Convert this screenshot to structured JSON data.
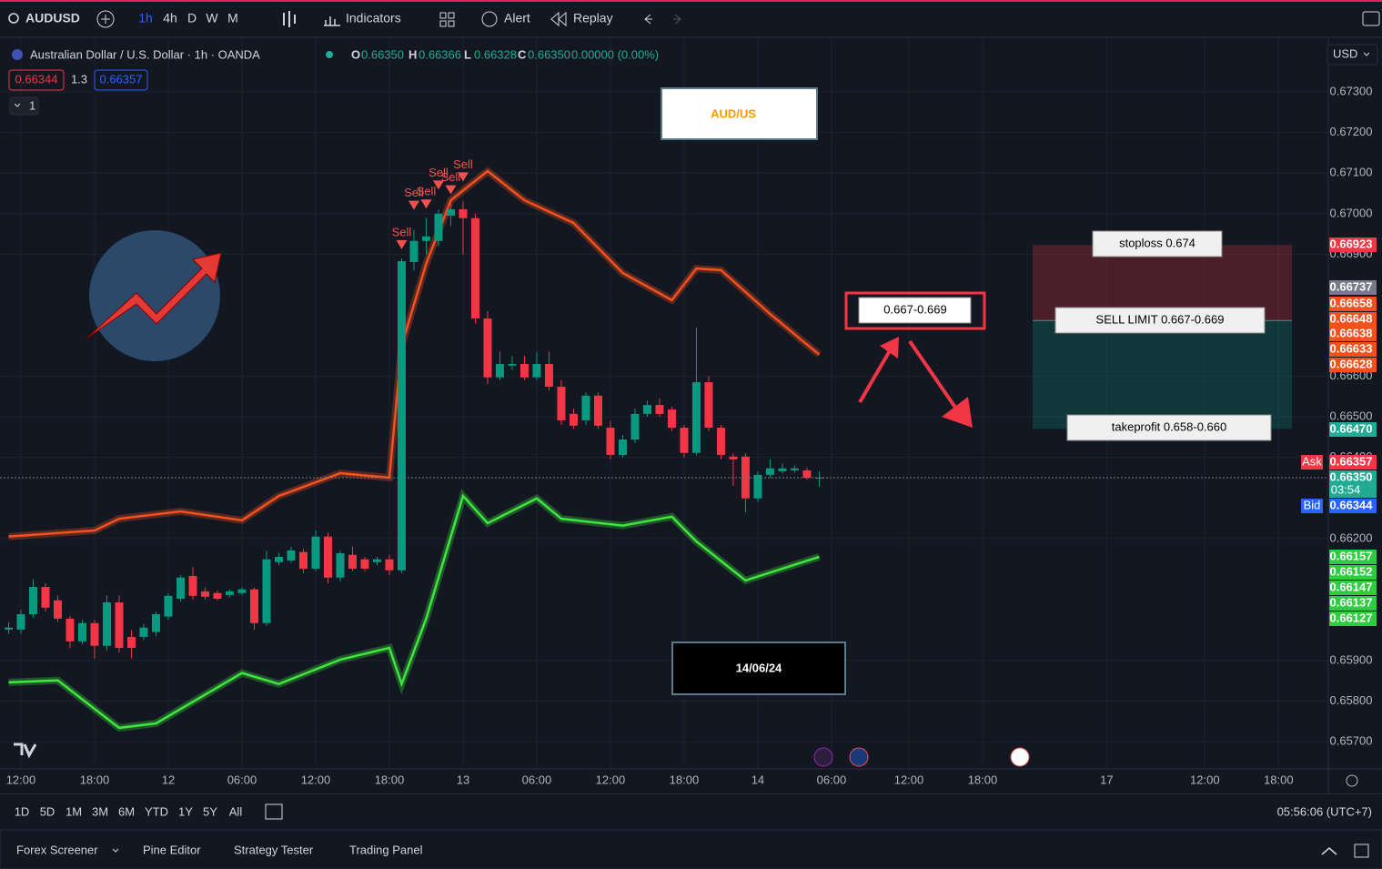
{
  "toolbar": {
    "symbol": "AUDUSD",
    "intervals": [
      "1h",
      "4h",
      "D",
      "W",
      "M"
    ],
    "indicators": "Indicators",
    "alert": "Alert",
    "replay": "Replay"
  },
  "legend": {
    "title": "Australian Dollar / U.S. Dollar · 1h · OANDA",
    "ohlc": [
      {
        "key": "O",
        "value": "0.66350"
      },
      {
        "key": "H",
        "value": "0.66366"
      },
      {
        "key": "L",
        "value": "0.66328"
      },
      {
        "key": "C",
        "value": "0.66350"
      }
    ],
    "change": "0.00000 (0.00%)",
    "sell_price": "0.66344",
    "spread": "1.3",
    "buy_price": "0.66357",
    "indicator_count": "1"
  },
  "currency": "USD",
  "chart_data": {
    "type": "candlestick",
    "up_color": "#089981",
    "down_color": "#f23645",
    "open": [
      0.65976,
      0.65976,
      0.66014,
      0.66081,
      0.66048,
      0.66003,
      0.65947,
      0.65992,
      0.65936,
      0.66043,
      0.65958,
      0.65958,
      0.6597,
      0.66008,
      0.66052,
      0.66108,
      0.6607,
      0.66066,
      0.66061,
      0.66066,
      0.66075,
      0.65992,
      0.66142,
      0.66146,
      0.66167,
      0.66126,
      0.66205,
      0.66104,
      0.6616,
      0.66149,
      0.66142,
      0.66149,
      0.66122,
      0.66881,
      0.66933,
      0.66933,
      0.66995,
      0.67011,
      0.66989,
      0.66742,
      0.66597,
      0.66626,
      0.6663,
      0.66597,
      0.6663,
      0.66574,
      0.66507,
      0.66491,
      0.66552,
      0.66473,
      0.66406,
      0.66444,
      0.66507,
      0.66529,
      0.66518,
      0.66473,
      0.66411,
      0.66585,
      0.66473,
      0.66402,
      0.66402,
      0.66299,
      0.66357,
      0.66366,
      0.66368,
      0.66368,
      0.6635
    ],
    "high": [
      0.65995,
      0.66025,
      0.661,
      0.6609,
      0.6606,
      0.6601,
      0.66,
      0.66,
      0.6606,
      0.6606,
      0.65975,
      0.6599,
      0.6602,
      0.66065,
      0.6611,
      0.6613,
      0.6608,
      0.66072,
      0.66075,
      0.6608,
      0.6608,
      0.6617,
      0.66165,
      0.6618,
      0.66175,
      0.6622,
      0.66215,
      0.6617,
      0.6618,
      0.66155,
      0.66155,
      0.6616,
      0.6689,
      0.6696,
      0.6699,
      0.6701,
      0.67025,
      0.6703,
      0.67,
      0.6676,
      0.6666,
      0.6665,
      0.6665,
      0.6666,
      0.6666,
      0.6659,
      0.6652,
      0.6656,
      0.6656,
      0.6649,
      0.66455,
      0.6652,
      0.6654,
      0.66545,
      0.66525,
      0.6648,
      0.6672,
      0.666,
      0.6648,
      0.6641,
      0.6641,
      0.66365,
      0.66395,
      0.66385,
      0.6638,
      0.66375,
      0.66366
    ],
    "low": [
      0.65965,
      0.65965,
      0.66005,
      0.6602,
      0.65995,
      0.6593,
      0.6594,
      0.65905,
      0.65925,
      0.6592,
      0.65905,
      0.6595,
      0.6596,
      0.66,
      0.66045,
      0.6605,
      0.6605,
      0.66048,
      0.66055,
      0.6606,
      0.65975,
      0.65985,
      0.66135,
      0.6614,
      0.66115,
      0.6612,
      0.6609,
      0.66095,
      0.6612,
      0.6612,
      0.66135,
      0.6611,
      0.66115,
      0.6686,
      0.669,
      0.6692,
      0.6697,
      0.669,
      0.6673,
      0.6658,
      0.6659,
      0.66615,
      0.6659,
      0.6659,
      0.66565,
      0.6648,
      0.6647,
      0.6648,
      0.6647,
      0.66395,
      0.664,
      0.66435,
      0.665,
      0.665,
      0.66465,
      0.664,
      0.66405,
      0.66465,
      0.66395,
      0.6633,
      0.66265,
      0.6629,
      0.6635,
      0.6636,
      0.66362,
      0.66345,
      0.66328
    ],
    "close": [
      0.65981,
      0.66014,
      0.66081,
      0.6603,
      0.66003,
      0.65947,
      0.65992,
      0.65936,
      0.66043,
      0.65931,
      0.65931,
      0.65981,
      0.66014,
      0.66059,
      0.66104,
      0.66059,
      0.66057,
      0.66052,
      0.6607,
      0.66075,
      0.65992,
      0.66149,
      0.66155,
      0.66171,
      0.66126,
      0.66205,
      0.66104,
      0.66164,
      0.66126,
      0.66126,
      0.66149,
      0.66122,
      0.66883,
      0.66933,
      0.66944,
      0.67,
      0.67011,
      0.66989,
      0.66742,
      0.66597,
      0.6663,
      0.6663,
      0.66597,
      0.6663,
      0.66574,
      0.66491,
      0.66478,
      0.66552,
      0.66478,
      0.66406,
      0.66444,
      0.66507,
      0.66529,
      0.66507,
      0.66473,
      0.66411,
      0.66585,
      0.66473,
      0.66406,
      0.66395,
      0.66299,
      0.66357,
      0.66373,
      0.66373,
      0.66373,
      0.6635,
      0.6635
    ],
    "upper_band": {
      "color": "#f4511e",
      "x": [
        0,
        7,
        9,
        14,
        19,
        22,
        27,
        31,
        32,
        34,
        36,
        39,
        42,
        46,
        50,
        54,
        56,
        58,
        62,
        66
      ],
      "values": [
        0.66205,
        0.6622,
        0.66249,
        0.66267,
        0.66245,
        0.66305,
        0.66361,
        0.6635,
        0.66675,
        0.66877,
        0.67033,
        0.67105,
        0.67033,
        0.66977,
        0.66854,
        0.66787,
        0.66865,
        0.66861,
        0.66753,
        0.66653
      ]
    },
    "lower_band": {
      "color": "#3ee63e",
      "x": [
        0,
        4,
        9,
        12,
        19,
        22,
        27,
        31,
        32,
        34,
        37,
        39,
        43,
        45,
        50,
        54,
        56,
        60,
        66
      ],
      "values": [
        0.65846,
        0.65851,
        0.65734,
        0.65745,
        0.65869,
        0.65842,
        0.65902,
        0.65931,
        0.65842,
        0.66003,
        0.66305,
        0.66238,
        0.66299,
        0.66249,
        0.66232,
        0.66254,
        0.66193,
        0.66097,
        0.66155
      ]
    },
    "signals": {
      "color": "#ef5350",
      "x": [
        32,
        33,
        34,
        35,
        36,
        37
      ],
      "labels": [
        "Sell",
        "Sell",
        "Sell",
        "Sell",
        "Sell",
        "Sell"
      ]
    },
    "xlim": [
      -0.48,
      107.45
    ],
    "ylim": [
      0.65633,
      0.67432
    ],
    "yticks": [
      {
        "value": 0.673,
        "label": "0.67300"
      },
      {
        "value": 0.672,
        "label": "0.67200"
      },
      {
        "value": 0.671,
        "label": "0.67100"
      },
      {
        "value": 0.67,
        "label": "0.67000"
      },
      {
        "value": 0.669,
        "label": "0.66900"
      },
      {
        "value": 0.666,
        "label": "0.66600"
      },
      {
        "value": 0.665,
        "label": "0.66500"
      },
      {
        "value": 0.664,
        "label": "0.66400"
      },
      {
        "value": 0.662,
        "label": "0.66200"
      },
      {
        "value": 0.659,
        "label": "0.65900"
      },
      {
        "value": 0.658,
        "label": "0.65800"
      },
      {
        "value": 0.657,
        "label": "0.65700"
      }
    ],
    "xticks": [
      {
        "value": 1,
        "label": "12:00"
      },
      {
        "value": 7,
        "label": "18:00"
      },
      {
        "value": 13,
        "label": "12"
      },
      {
        "value": 19,
        "label": "06:00"
      },
      {
        "value": 25,
        "label": "12:00"
      },
      {
        "value": 31,
        "label": "18:00"
      },
      {
        "value": 37,
        "label": "13"
      },
      {
        "value": 43,
        "label": "06:00"
      },
      {
        "value": 49,
        "label": "12:00"
      },
      {
        "value": 55,
        "label": "18:00"
      },
      {
        "value": 61,
        "label": "14"
      },
      {
        "value": 67,
        "label": "06:00"
      },
      {
        "value": 73.3,
        "label": "12:00"
      },
      {
        "value": 79.3,
        "label": "18:00"
      },
      {
        "value": 89.4,
        "label": "17"
      },
      {
        "value": 97.4,
        "label": "12:00"
      },
      {
        "value": 103.4,
        "label": "18:00"
      }
    ],
    "grid": true
  },
  "price_badges": [
    {
      "value": 0.66923,
      "label": "0.66923",
      "color": "#f23645"
    },
    {
      "value": 0.66737,
      "label": "0.66737",
      "color": "#787b86"
    },
    {
      "value": 0.66658,
      "label": "0.66658",
      "color": "#f4511e"
    },
    {
      "value": 0.66648,
      "label": "0.66648",
      "color": "#f4511e"
    },
    {
      "value": 0.66638,
      "label": "0.66638",
      "color": "#f4511e"
    },
    {
      "value": 0.66633,
      "label": "0.66633",
      "color": "#f4511e"
    },
    {
      "value": 0.66628,
      "label": "0.66628",
      "color": "#f4511e"
    },
    {
      "value": 0.6647,
      "label": "0.66470",
      "color": "#22ab94"
    },
    {
      "value": 0.66357,
      "label": "0.66357",
      "color": "#f23645",
      "tag": "Ask"
    },
    {
      "value": 0.6635,
      "label": "0.66350",
      "color": "#22ab94",
      "countdown": "03:54"
    },
    {
      "value": 0.66344,
      "label": "0.66344",
      "color": "#2962ff",
      "tag": "Bid"
    },
    {
      "value": 0.66157,
      "label": "0.66157",
      "color": "#2ecc40"
    },
    {
      "value": 0.66152,
      "label": "0.66152",
      "color": "#2ecc40"
    },
    {
      "value": 0.66147,
      "label": "0.66147",
      "color": "#2ecc40"
    },
    {
      "value": 0.66137,
      "label": "0.66137",
      "color": "#2ecc40"
    },
    {
      "value": 0.66127,
      "label": "0.66127",
      "color": "#2ecc40"
    }
  ],
  "annotations": {
    "title_box": "AUD/US",
    "zone_label": "0.667-0.669",
    "stoploss": "stoploss 0.674",
    "sell_limit": "SELL LIMIT 0.667-0.669",
    "takeprofit": "takeprofit 0.658-0.660",
    "date": "14/06/24"
  },
  "ranges": [
    "1D",
    "5D",
    "1M",
    "3M",
    "6M",
    "YTD",
    "1Y",
    "5Y",
    "All"
  ],
  "clock": "05:56:06 (UTC+7)",
  "tabs": [
    "Forex Screener",
    "Pine Editor",
    "Strategy Tester",
    "Trading Panel"
  ]
}
